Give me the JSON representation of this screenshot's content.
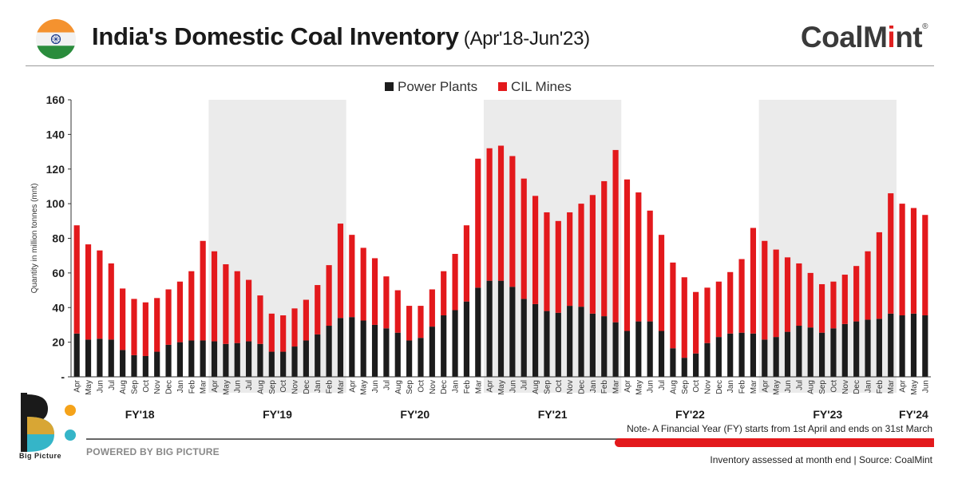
{
  "header": {
    "title": "India's Domestic Coal Inventory",
    "period": "(Apr'18-Jun'23)",
    "brand_text": "CoalM",
    "brand_dot": "i",
    "brand_rest": "nt",
    "brand_mark": "®",
    "flag_icon": "india-flag-icon"
  },
  "footer": {
    "note": "Note- A Financial Year (FY) starts from 1st April and ends on 31st March",
    "powered_by": "POWERED BY BIG PICTURE",
    "source": "Inventory assessed at month end | Source: CoalMint",
    "logo_label": "Big Picture",
    "logo_icon": "big-picture-logo-icon"
  },
  "colors": {
    "power_plants": "#1c1c1c",
    "cil_mines": "#e3191c",
    "band": "#ebebeb",
    "logo_yellow": "#f5a31a",
    "logo_teal": "#35b5c8"
  },
  "chart_data": {
    "type": "bar",
    "stacked": true,
    "title": "",
    "xlabel": "",
    "ylabel": "Quantity in million tonnes (mnt)",
    "ylim": [
      0,
      160
    ],
    "yticks": [
      0,
      20,
      40,
      60,
      80,
      100,
      120,
      140,
      160
    ],
    "ytick_labels": [
      "-",
      "20",
      "40",
      "60",
      "80",
      "100",
      "120",
      "140",
      "160"
    ],
    "legend_position": "top-center",
    "grid": false,
    "categories": [
      "Apr",
      "May",
      "Jun",
      "Jul",
      "Aug",
      "Sep",
      "Oct",
      "Nov",
      "Dec",
      "Jan",
      "Feb",
      "Mar",
      "Apr",
      "May",
      "Jun",
      "Jul",
      "Aug",
      "Sep",
      "Oct",
      "Nov",
      "Dec",
      "Jan",
      "Feb",
      "Mar",
      "Apr",
      "May",
      "Jun",
      "Jul",
      "Aug",
      "Sep",
      "Oct",
      "Nov",
      "Dec",
      "Jan",
      "Feb",
      "Mar",
      "Apr",
      "May",
      "Jun",
      "Jul",
      "Aug",
      "Sep",
      "Oct",
      "Nov",
      "Dec",
      "Jan",
      "Feb",
      "Mar",
      "Apr",
      "May",
      "Jun",
      "Jul",
      "Aug",
      "Sep",
      "Oct",
      "Nov",
      "Dec",
      "Jan",
      "Feb",
      "Mar",
      "Apr",
      "May",
      "Jun",
      "Jul",
      "Aug",
      "Sep",
      "Oct",
      "Nov",
      "Dec",
      "Jan",
      "Feb",
      "Mar",
      "Apr",
      "May",
      "Jun"
    ],
    "series": [
      {
        "name": "Power Plants",
        "values": [
          25,
          21.5,
          22,
          21.5,
          15.5,
          12.5,
          12,
          14.5,
          18.5,
          20,
          21,
          21,
          20.5,
          19,
          19.5,
          20.5,
          19,
          14.5,
          14.5,
          17.5,
          21,
          24.5,
          29.5,
          34,
          34.5,
          32.5,
          30,
          28,
          25.5,
          21,
          22.5,
          29,
          35.5,
          38.5,
          43.5,
          51.5,
          55.5,
          55.5,
          52,
          45,
          42,
          38,
          37,
          41,
          40.5,
          36.5,
          35,
          31.5,
          26.5,
          32,
          32,
          26.5,
          16.5,
          11,
          13.5,
          19.5,
          23,
          25,
          25.5,
          25,
          21.5,
          23,
          26,
          29.5,
          28.5,
          25.5,
          28,
          30.5,
          32,
          33,
          33.5,
          36.5,
          35.5,
          36.5,
          35.5
        ]
      },
      {
        "name": "CIL Mines",
        "values": [
          62.5,
          55,
          51,
          44,
          35.5,
          32.5,
          31,
          31,
          32,
          35,
          40,
          57.5,
          52,
          46,
          41.5,
          35.5,
          28,
          22,
          21,
          22,
          23.5,
          28.5,
          35,
          54.5,
          47.5,
          42,
          38.5,
          30,
          24.5,
          20,
          18.5,
          21.5,
          25.5,
          32.5,
          44,
          74.5,
          76.5,
          78,
          75.5,
          69.5,
          62.5,
          57,
          53,
          54,
          59.5,
          68.5,
          78,
          99.5,
          87.5,
          74.5,
          64,
          55.5,
          49.5,
          46.5,
          35.5,
          32,
          32,
          35.5,
          42.5,
          61,
          57,
          50.5,
          43,
          36,
          31.5,
          28,
          27,
          28.5,
          32,
          39.5,
          50,
          69.5,
          64.5,
          61,
          58
        ]
      }
    ],
    "fiscal_years": [
      {
        "label": "FY'18",
        "start": 0,
        "end": 11,
        "shaded": false
      },
      {
        "label": "FY'19",
        "start": 12,
        "end": 23,
        "shaded": true
      },
      {
        "label": "FY'20",
        "start": 24,
        "end": 35,
        "shaded": false
      },
      {
        "label": "FY'21",
        "start": 36,
        "end": 47,
        "shaded": true
      },
      {
        "label": "FY'22",
        "start": 48,
        "end": 59,
        "shaded": false
      },
      {
        "label": "FY'23",
        "start": 60,
        "end": 71,
        "shaded": true
      },
      {
        "label": "FY'24",
        "start": 72,
        "end": 74,
        "shaded": false
      }
    ]
  }
}
